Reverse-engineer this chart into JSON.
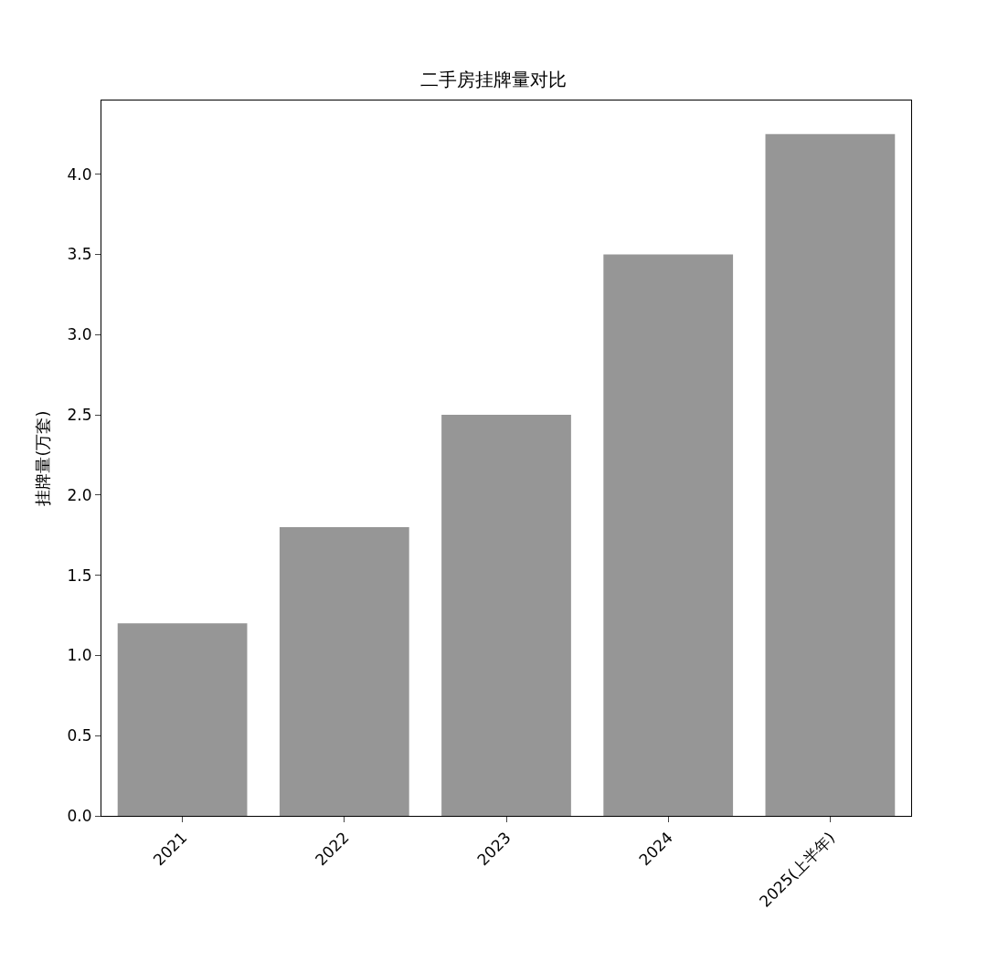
{
  "chart_data": {
    "type": "bar",
    "title": "二手房挂牌量对比",
    "ylabel": "挂牌量(万套)",
    "categories": [
      "2021",
      "2022",
      "2023",
      "2024",
      "2025(上半年)"
    ],
    "values": [
      1.2,
      1.8,
      2.5,
      3.5,
      4.25
    ],
    "color": "#969696",
    "ylim": [
      0,
      4.46
    ],
    "yticks": [
      {
        "value": 0,
        "label": "0.0"
      },
      {
        "value": 0.5,
        "label": "0.5"
      },
      {
        "value": 1,
        "label": "1.0"
      },
      {
        "value": 1.5,
        "label": "1.5"
      },
      {
        "value": 2,
        "label": "2.0"
      },
      {
        "value": 2.5,
        "label": "2.5"
      },
      {
        "value": 3,
        "label": "3.0"
      },
      {
        "value": 3.5,
        "label": "3.5"
      },
      {
        "value": 4,
        "label": "4.0"
      }
    ],
    "legend": false
  }
}
